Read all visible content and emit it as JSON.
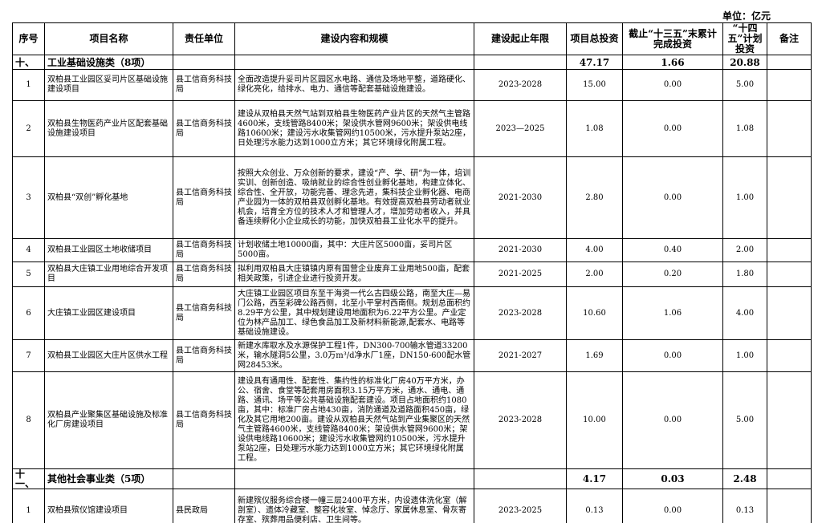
{
  "unit": "单位：亿元",
  "table": {
    "header": [
      "序号",
      "项目名称",
      "责任单位",
      "建设内容和规模",
      "建设起止年限",
      "项目总投资",
      "截止“十三五”末累计完成投资",
      "“十四五”计划投资",
      "备注"
    ],
    "rows": [
      [
        "十、",
        "工业基础设施类（8项）",
        null,
        null,
        null,
        "47.17",
        "1.66",
        "20.88",
        null
      ],
      [
        "1",
        "双柏县工业园区妥司片区基础设施建设项目",
        "县工信商务科技局",
        "全面改造提升妥司片区园区水电路、通信及场地平整，道路硬化、绿化亮化，给排水、电力、通信等配套基础设施建设。",
        "2023-2028",
        "15.00",
        "0.00",
        "5.00",
        null
      ],
      [
        "2",
        "双柏县生物医药产业片区配套基础设施建设项目",
        "县工信商务科技局",
        "建设从双柏县天然气站到双柏县生物医药产业片区的天然气主管路4600米，支线管路8400米；架设供水管网9600米；架设供电线路10600米；建设污水收集管网约10500米，污水提升泵站2座，日处理污水能力达到1000立方米；其它环境绿化附属工程。",
        "2023—2025",
        "1.08",
        "0.00",
        "1.08",
        null
      ],
      [
        "3",
        "双柏县“双创”孵化基地",
        "县工信商务科技局",
        "按照大众创业、万众创新的要求，建设“产、学、研”为一体，培训实训、创新创造、吸纳就业的综合性创业孵化基地，构建立体化、综合性、全开放，功能完善、理念先进，集科技企业孵化器、电商产业园为一体的双柏县双创孵化基地。有效提高双柏县劳动者就业机会，培育全方位的技术人才和管理人才，增加劳动者收入，并具备连续孵化小企业成长的功能，加快双柏县工业化水平的提升。",
        "2021-2030",
        "2.80",
        "0.00",
        "1.00",
        null
      ],
      [
        "4",
        "双柏县工业园区土地收储项目",
        "县工信商务科技局",
        "计划收储土地10000亩，其中：大庄片区5000亩，妥司片区5000亩。",
        "2021-2030",
        "4.00",
        "0.40",
        "2.00",
        null
      ],
      [
        "5",
        "双柏县大庄镇工业用地综合开发项目",
        "县工信商务科技局",
        "拟利用双柏县大庄镇镇内原有国营企业废弃工业用地500亩，配套相关政策，引进企业进行投资开发。",
        "2021-2025",
        "2.00",
        "0.20",
        "1.80",
        null
      ],
      [
        "6",
        "大庄镇工业园区建设项目",
        "县工信商务科技局",
        "大庄镇工业园区项目东至干海资一代么古四级公路，南至大庄—易门公路，西至彩碑公路西侧，北至小平掌村西南侧。规划总面积约8.29平方公里，其中规划建设用地面积为6.22平方公里。产业定位为林产品加工、绿色食品加工及新材料新能源,配套水、电路等基础设施建设。",
        "2023-2028",
        "10.60",
        "1.06",
        "4.00",
        null
      ],
      [
        "7",
        "双柏县工业园区大庄片区供水工程",
        "县工信商务科技局",
        "新建水库取水及水源保护工程1件，DN300-700输水管道33200米，输水隧洞5公里，3.0万m³/d净水厂1座，DN150-600配水管网28453米。",
        "2021-2027",
        "1.69",
        "0.00",
        "1.00",
        null
      ],
      [
        "8",
        "双柏县产业聚集区基础设施及标准化厂房建设项目",
        "县工信商务科技局",
        "建设具有通用性、配套性、集约性的标准化厂房40万平方米，办公、宿舍、食堂等配套用房面积3.15万平方米，通水、通电、通路、通讯、场平等公共基础设施配套建设。项目占地面积约1080亩，其中：标准厂房占地430亩，消防通道及道路面积450亩，绿化及其它用地200亩。建设从双柏县天然气站到产业集聚区的天然气主管路4600米，支线管路8400米；架设供水管网9600米；架设供电线路10600米；建设污水收集管网约10500米，污水提升泵站2座，日处理污水能力达到1000立方米；其它环境绿化附属工程。",
        "2023-2028",
        "10.00",
        "0.00",
        "5.00",
        null
      ],
      [
        "十一、",
        "其他社会事业类（5项）",
        null,
        null,
        null,
        "4.17",
        "0.03",
        "2.48",
        null
      ],
      [
        "1",
        "双柏县殡仪馆建设项目",
        "县民政局",
        "新建殡仪服务综合楼一幢三层2400平方米，内设遗体洗化室（解剖室）、遗体冷藏室、整容化妆室、悼念厅、家属休息室、骨灰寄存室、殡葬用品便利店、卫生间等。",
        "2023-2025",
        "0.13",
        "0.00",
        "0.13",
        null
      ]
    ]
  }
}
